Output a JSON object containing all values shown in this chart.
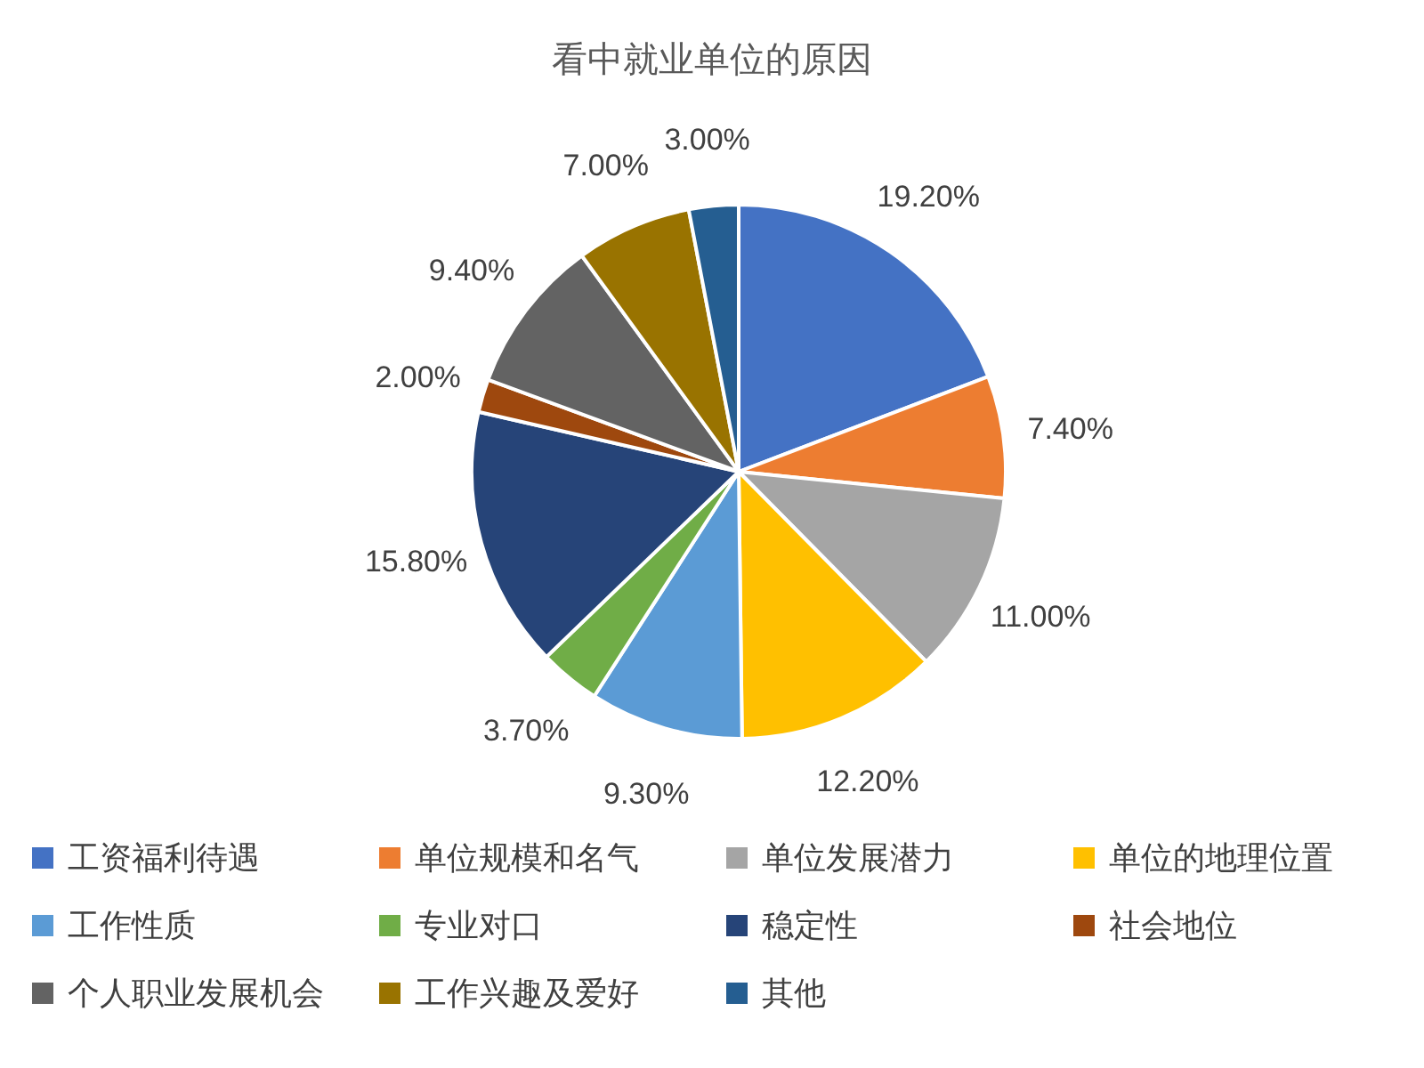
{
  "chart_data": {
    "type": "pie",
    "title": "看中就业单位的原因",
    "categories": [
      "工资福利待遇",
      "单位规模和名气",
      "单位发展潜力",
      "单位的地理位置",
      "工作性质",
      "专业对口",
      "稳定性",
      "社会地位",
      "个人职业发展机会",
      "工作兴趣及爱好",
      "其他"
    ],
    "values": [
      19.2,
      7.4,
      11.0,
      12.2,
      9.3,
      3.7,
      15.8,
      2.0,
      9.4,
      7.0,
      3.0
    ],
    "value_labels": [
      "19.20%",
      "7.40%",
      "11.00%",
      "12.20%",
      "9.30%",
      "3.70%",
      "15.80%",
      "2.00%",
      "9.40%",
      "7.00%",
      "3.00%"
    ],
    "colors": [
      "#4472c4",
      "#ed7d31",
      "#a5a5a5",
      "#ffc000",
      "#5b9bd5",
      "#70ad47",
      "#264478",
      "#9e480e",
      "#636363",
      "#997300",
      "#255e91"
    ],
    "legend": "bottom"
  }
}
